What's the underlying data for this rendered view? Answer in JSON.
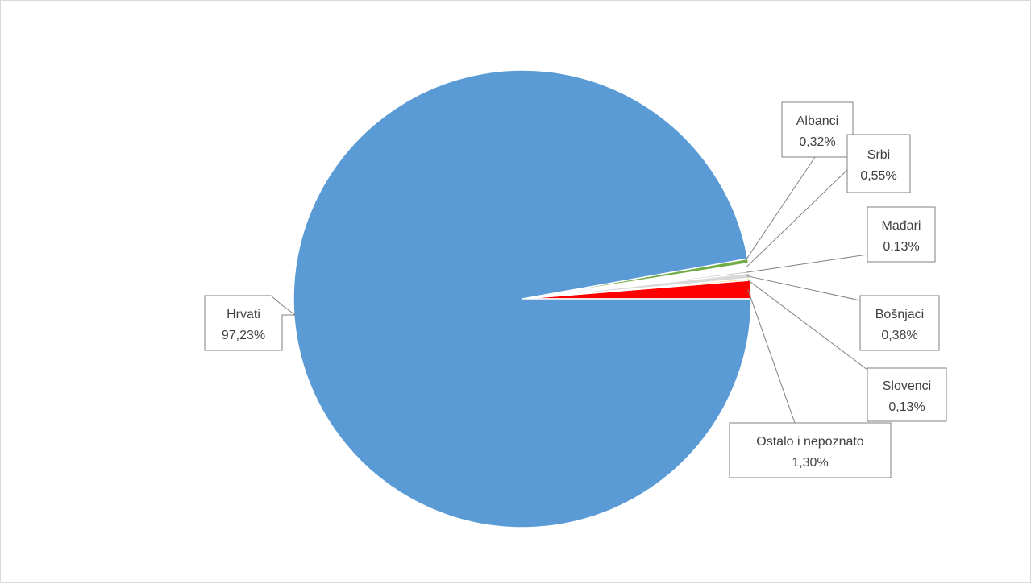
{
  "chart_data": {
    "type": "pie",
    "title": "",
    "slices": [
      {
        "name": "Hrvati",
        "value": 97.23,
        "label": "97,23%",
        "color": "#5b9bd5"
      },
      {
        "name": "Albanci",
        "value": 0.32,
        "label": "0,32%",
        "color": "#70ad47"
      },
      {
        "name": "Srbi",
        "value": 0.55,
        "label": "0,55%",
        "color": "#ffffff"
      },
      {
        "name": "Mađari",
        "value": 0.13,
        "label": "0,13%",
        "color": "#a5a5a5"
      },
      {
        "name": "Bošnjaci",
        "value": 0.38,
        "label": "0,38%",
        "color": "#d9d9d9"
      },
      {
        "name": "Slovenci",
        "value": 0.13,
        "label": "0,13%",
        "color": "#ffd966"
      },
      {
        "name": "Ostalo i nepoznato",
        "value": 1.3,
        "label": "1,30%",
        "color": "#ff0000"
      }
    ],
    "legend": "none",
    "data_labels": "category name and percentage with leader lines"
  }
}
